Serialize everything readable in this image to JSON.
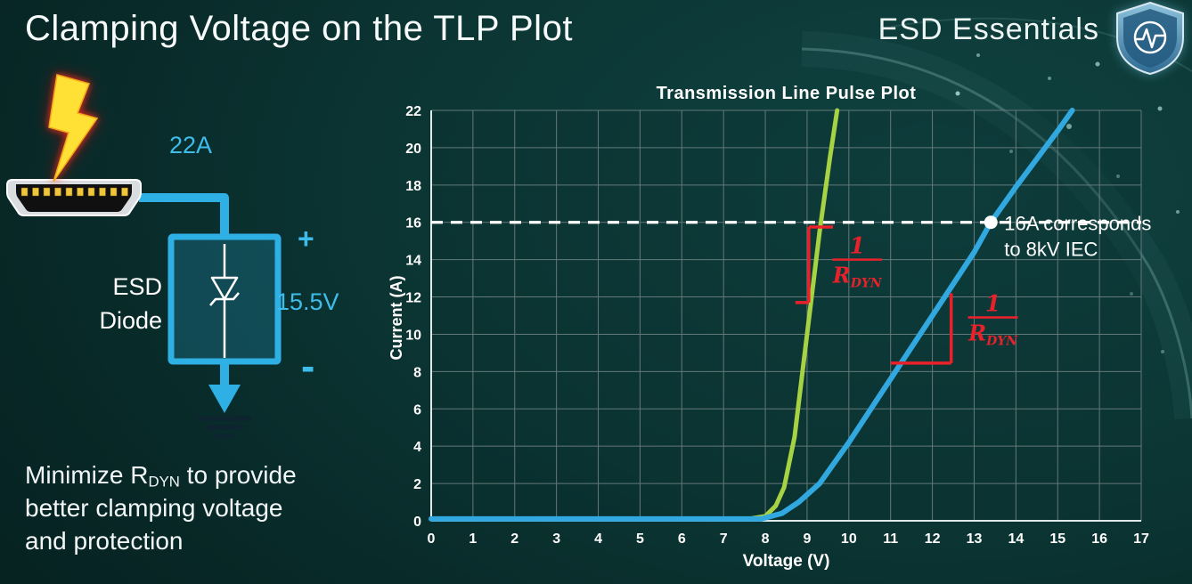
{
  "slide": {
    "title": "Clamping Voltage on the TLP Plot",
    "brand": "ESD Essentials"
  },
  "diagram": {
    "surge_current_label": "22A",
    "component_label_line1": "ESD",
    "component_label_line2": "Diode",
    "plus_label": "+",
    "clamp_voltage_label": "15.5V",
    "minus_label": "-"
  },
  "footer_note": {
    "line1_pre": "Minimize R",
    "line1_sub": "DYN",
    "line1_post": " to provide",
    "line2": "better clamping voltage",
    "line3": "and protection"
  },
  "chart_data": {
    "type": "line",
    "title": "Transmission Line Pulse Plot",
    "xlabel": "Voltage (V)",
    "ylabel": "Current (A)",
    "xlim": [
      0,
      17
    ],
    "ylim": [
      0,
      22
    ],
    "x_ticks": [
      0,
      1,
      2,
      3,
      4,
      5,
      6,
      7,
      8,
      9,
      10,
      11,
      12,
      13,
      14,
      15,
      16,
      17
    ],
    "y_ticks": [
      0,
      2,
      4,
      6,
      8,
      10,
      12,
      14,
      16,
      18,
      20,
      22
    ],
    "grid": true,
    "grid_color": "#64797a",
    "series": [
      {
        "name": "green-curve-low-rdyn",
        "color": "#a6d243",
        "width": 5,
        "points": [
          [
            0,
            0.1
          ],
          [
            7.6,
            0.1
          ],
          [
            8.0,
            0.25
          ],
          [
            8.25,
            0.8
          ],
          [
            8.45,
            1.8
          ],
          [
            8.7,
            4.5
          ],
          [
            9.0,
            10
          ],
          [
            9.3,
            15.5
          ],
          [
            9.55,
            19.5
          ],
          [
            9.72,
            22
          ]
        ]
      },
      {
        "name": "blue-curve-higher-rdyn",
        "color": "#31a9e0",
        "width": 6,
        "points": [
          [
            0,
            0.1
          ],
          [
            7.9,
            0.1
          ],
          [
            8.4,
            0.4
          ],
          [
            8.8,
            1.0
          ],
          [
            9.3,
            2.0
          ],
          [
            10.0,
            4.2
          ],
          [
            11.0,
            7.6
          ],
          [
            12.0,
            11.0
          ],
          [
            13.0,
            14.4
          ],
          [
            13.4,
            16.0
          ],
          [
            14.0,
            17.9
          ],
          [
            15.0,
            20.9
          ],
          [
            15.35,
            22
          ]
        ]
      }
    ],
    "reference_line": {
      "y": 16,
      "color": "#ffffff",
      "dash": "13 9"
    },
    "marker": {
      "x": 13.4,
      "y": 16,
      "color": "#ffffff",
      "label_lines": [
        "16A corresponds",
        "to 8kV IEC"
      ]
    },
    "slope_markers": [
      {
        "color": "#e8212b",
        "segments": [
          [
            [
              9.04,
              15.75
            ],
            [
              9.04,
              11.7
            ]
          ],
          [
            [
              9.04,
              15.75
            ],
            [
              9.62,
              15.75
            ]
          ],
          [
            [
              8.72,
              11.7
            ],
            [
              9.04,
              11.7
            ]
          ]
        ],
        "fraction": {
          "x": 10.2,
          "y": 14.0,
          "num": "1",
          "den": "R",
          "den_sub": "DYN"
        }
      },
      {
        "color": "#e8212b",
        "segments": [
          [
            [
              11.0,
              8.45
            ],
            [
              12.45,
              8.45
            ]
          ],
          [
            [
              12.45,
              8.45
            ],
            [
              12.45,
              12.2
            ]
          ]
        ],
        "fraction": {
          "x": 13.45,
          "y": 10.9,
          "num": "1",
          "den": "R",
          "den_sub": "DYN"
        }
      }
    ]
  }
}
